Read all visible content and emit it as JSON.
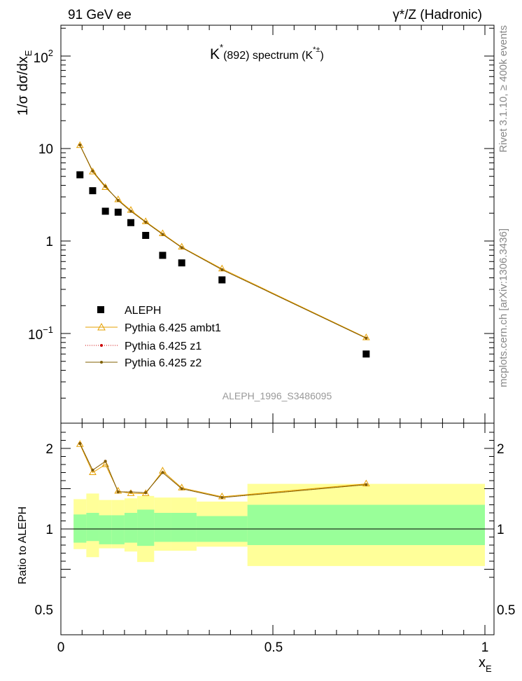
{
  "header": {
    "left": "91 GeV ee",
    "right": "γ*/Z (Hadronic)"
  },
  "side_labels": {
    "rivet": "Rivet 3.1.10, ≥ 400k events",
    "mcplots": "mcplots.cern.ch [arXiv:1306.3436]"
  },
  "chart_data": {
    "type": "line",
    "title_parts": {
      "main": "K",
      "sup1": "*",
      "mid": "(892) spectrum (K",
      "sup2": "*±",
      "end": ")"
    },
    "watermark": "ALEPH_1996_S3486095",
    "xlabel": {
      "main": "x",
      "sub": "E"
    },
    "ylabel": {
      "main": "1/σ dσ/dx",
      "sub": "E"
    },
    "ratio_ylabel": "Ratio to ALEPH",
    "xlim": [
      0,
      1.02
    ],
    "ylim_log": [
      0.01,
      250
    ],
    "ratio_ylim": [
      0.33,
      2.28
    ],
    "x_ticks": [
      "0",
      "0.5",
      "1"
    ],
    "y_ticks": [
      {
        "base": "10",
        "exp": "2"
      },
      {
        "base": "10",
        "exp": ""
      },
      {
        "base": "1",
        "exp": ""
      },
      {
        "base": "10",
        "exp": "−1"
      }
    ],
    "ratio_ticks": [
      "2",
      "1.5",
      "1",
      "0.5"
    ],
    "legend": [
      {
        "name": "ALEPH",
        "color": "#000000"
      },
      {
        "name": "Pythia 6.425 ambt1",
        "color": "#e6a000"
      },
      {
        "name": "Pythia 6.425 z1",
        "color": "#cc0000"
      },
      {
        "name": "Pythia 6.425 z2",
        "color": "#806000"
      }
    ],
    "data": {
      "name": "ALEPH",
      "x": [
        0.045,
        0.075,
        0.105,
        0.135,
        0.165,
        0.2,
        0.24,
        0.285,
        0.38,
        0.72
      ],
      "y": [
        5.2,
        3.5,
        2.1,
        2.05,
        1.58,
        1.15,
        0.7,
        0.58,
        0.38,
        0.06
      ]
    },
    "ratio_bands": [
      {
        "x0": 0.03,
        "x1": 0.06,
        "inner": [
          0.83,
          1.18
        ],
        "outer": [
          0.75,
          1.37
        ]
      },
      {
        "x0": 0.06,
        "x1": 0.09,
        "inner": [
          0.85,
          1.2
        ],
        "outer": [
          0.65,
          1.44
        ]
      },
      {
        "x0": 0.09,
        "x1": 0.12,
        "inner": [
          0.81,
          1.17
        ],
        "outer": [
          0.76,
          1.36
        ]
      },
      {
        "x0": 0.12,
        "x1": 0.15,
        "inner": [
          0.81,
          1.17
        ],
        "outer": [
          0.76,
          1.36
        ]
      },
      {
        "x0": 0.15,
        "x1": 0.18,
        "inner": [
          0.83,
          1.2
        ],
        "outer": [
          0.72,
          1.38
        ]
      },
      {
        "x0": 0.18,
        "x1": 0.22,
        "inner": [
          0.79,
          1.24
        ],
        "outer": [
          0.59,
          1.41
        ]
      },
      {
        "x0": 0.22,
        "x1": 0.26,
        "inner": [
          0.84,
          1.2
        ],
        "outer": [
          0.73,
          1.39
        ]
      },
      {
        "x0": 0.26,
        "x1": 0.32,
        "inner": [
          0.84,
          1.2
        ],
        "outer": [
          0.73,
          1.39
        ]
      },
      {
        "x0": 0.32,
        "x1": 0.44,
        "inner": [
          0.84,
          1.16
        ],
        "outer": [
          0.78,
          1.34
        ]
      },
      {
        "x0": 0.44,
        "x1": 1.0,
        "inner": [
          0.8,
          1.3
        ],
        "outer": [
          0.54,
          1.56
        ]
      }
    ],
    "series": [
      {
        "name": "Pythia 6.425 ambt1",
        "x": [
          0.045,
          0.075,
          0.105,
          0.135,
          0.165,
          0.2,
          0.24,
          0.285,
          0.38,
          0.72
        ],
        "y": [
          10.8,
          5.6,
          3.8,
          2.8,
          2.15,
          1.62,
          1.2,
          0.86,
          0.5,
          0.09
        ],
        "ratio": [
          2.05,
          1.7,
          1.8,
          1.47,
          1.44,
          1.44,
          1.72,
          1.51,
          1.4,
          1.56
        ]
      },
      {
        "name": "Pythia 6.425 z1",
        "x": [
          0.045,
          0.075,
          0.105,
          0.135,
          0.165,
          0.2,
          0.24,
          0.285,
          0.38,
          0.72
        ],
        "y": [
          10.9,
          5.7,
          3.9,
          2.75,
          2.1,
          1.6,
          1.18,
          0.85,
          0.49,
          0.089
        ],
        "ratio": [
          2.06,
          1.73,
          1.84,
          1.46,
          1.46,
          1.45,
          1.7,
          1.5,
          1.39,
          1.55
        ]
      },
      {
        "name": "Pythia 6.425 z2",
        "x": [
          0.045,
          0.075,
          0.105,
          0.135,
          0.165,
          0.2,
          0.24,
          0.285,
          0.38,
          0.72
        ],
        "y": [
          10.9,
          5.7,
          3.9,
          2.75,
          2.1,
          1.6,
          1.18,
          0.85,
          0.49,
          0.089
        ],
        "ratio": [
          2.06,
          1.73,
          1.84,
          1.46,
          1.46,
          1.45,
          1.7,
          1.5,
          1.39,
          1.55
        ]
      }
    ],
    "colors": {
      "band_inner": "#99ff99",
      "band_outer": "#ffff99",
      "ref_line": "#000000"
    }
  }
}
